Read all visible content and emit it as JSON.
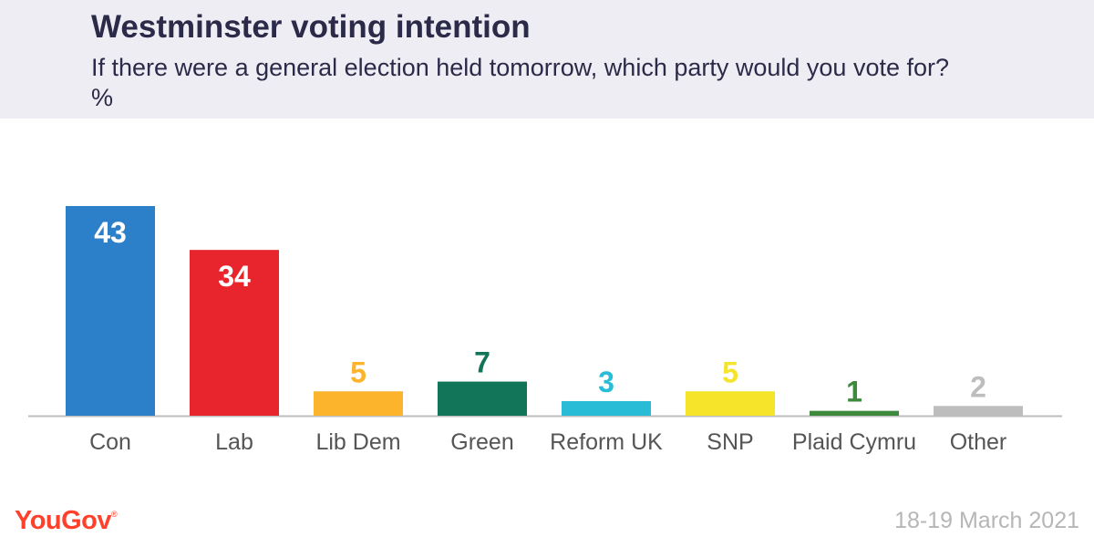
{
  "header": {
    "title": "Westminster voting intention",
    "subtitle": "If there were a general election held tomorrow, which party would you vote for? %"
  },
  "chart_data": {
    "type": "bar",
    "categories": [
      "Con",
      "Lab",
      "Lib Dem",
      "Green",
      "Reform UK",
      "SNP",
      "Plaid Cymru",
      "Other"
    ],
    "values": [
      43,
      34,
      5,
      7,
      3,
      5,
      1,
      2
    ],
    "colors": [
      "#2c7fc9",
      "#e8242c",
      "#fbb42c",
      "#127459",
      "#29bcd6",
      "#f5e42a",
      "#3e8a3c",
      "#bdbdbd"
    ],
    "label_colors": [
      "#ffffff",
      "#ffffff",
      "#fbb42c",
      "#127459",
      "#29bcd6",
      "#f5e42a",
      "#3e8a3c",
      "#bdbdbd"
    ],
    "title": "Westminster voting intention",
    "xlabel": "",
    "ylabel": "",
    "ylim": [
      0,
      43
    ],
    "grid": false,
    "data_labels": "inside for large bars, above for small bars"
  },
  "footer": {
    "brand": "YouGov",
    "brand_mark": "®",
    "date": "18-19 March 2021"
  },
  "colors": {
    "header_bg": "#efedf4",
    "title": "#2b2a48",
    "brand": "#ff412c",
    "date": "#b6b6b6",
    "axis": "#bdbdbd",
    "tick_label": "#555555"
  }
}
